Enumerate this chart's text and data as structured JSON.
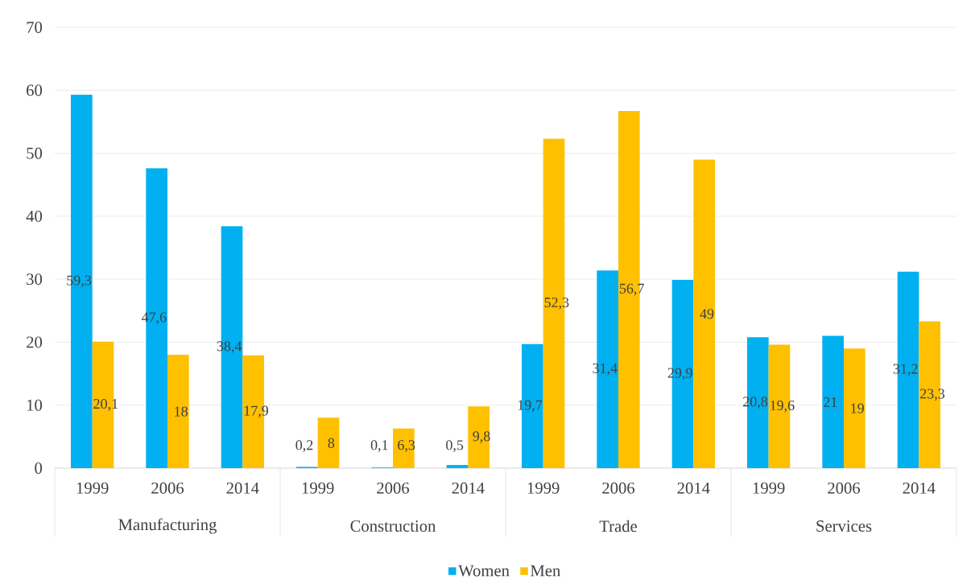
{
  "chart_data": {
    "type": "bar",
    "categories": [
      "1999",
      "2006",
      "2014",
      "1999",
      "2006",
      "2014",
      "1999",
      "2006",
      "2014",
      "1999",
      "2006",
      "2014"
    ],
    "annotations": [
      "Manufacturing",
      "Construction",
      "Trade",
      "Services"
    ],
    "series": [
      {
        "name": "Women",
        "color": "#00b0f0",
        "values": [
          59.3,
          47.6,
          38.4,
          0.2,
          0.1,
          0.5,
          19.7,
          31.4,
          29.9,
          20.8,
          21,
          31.2
        ],
        "value_labels": [
          "59,3",
          "47,6",
          "38,4",
          "0,2",
          "0,1",
          "0,5",
          "19,7",
          "31,4",
          "29,9",
          "20,8",
          "21",
          "31,2"
        ]
      },
      {
        "name": "Men",
        "color": "#ffc000",
        "values": [
          20.1,
          18,
          17.9,
          8,
          6.3,
          9.8,
          52.3,
          56.7,
          49,
          19.6,
          19,
          23.3
        ],
        "value_labels": [
          "20,1",
          "18",
          "17,9",
          "8",
          "6,3",
          "9,8",
          "52,3",
          "56,7",
          "49",
          "19,6",
          "19",
          "23,3"
        ]
      }
    ],
    "ylim": [
      0,
      70
    ],
    "yticks": [
      0,
      10,
      20,
      30,
      40,
      50,
      60,
      70
    ],
    "grid": "y",
    "legend": "bottom"
  }
}
